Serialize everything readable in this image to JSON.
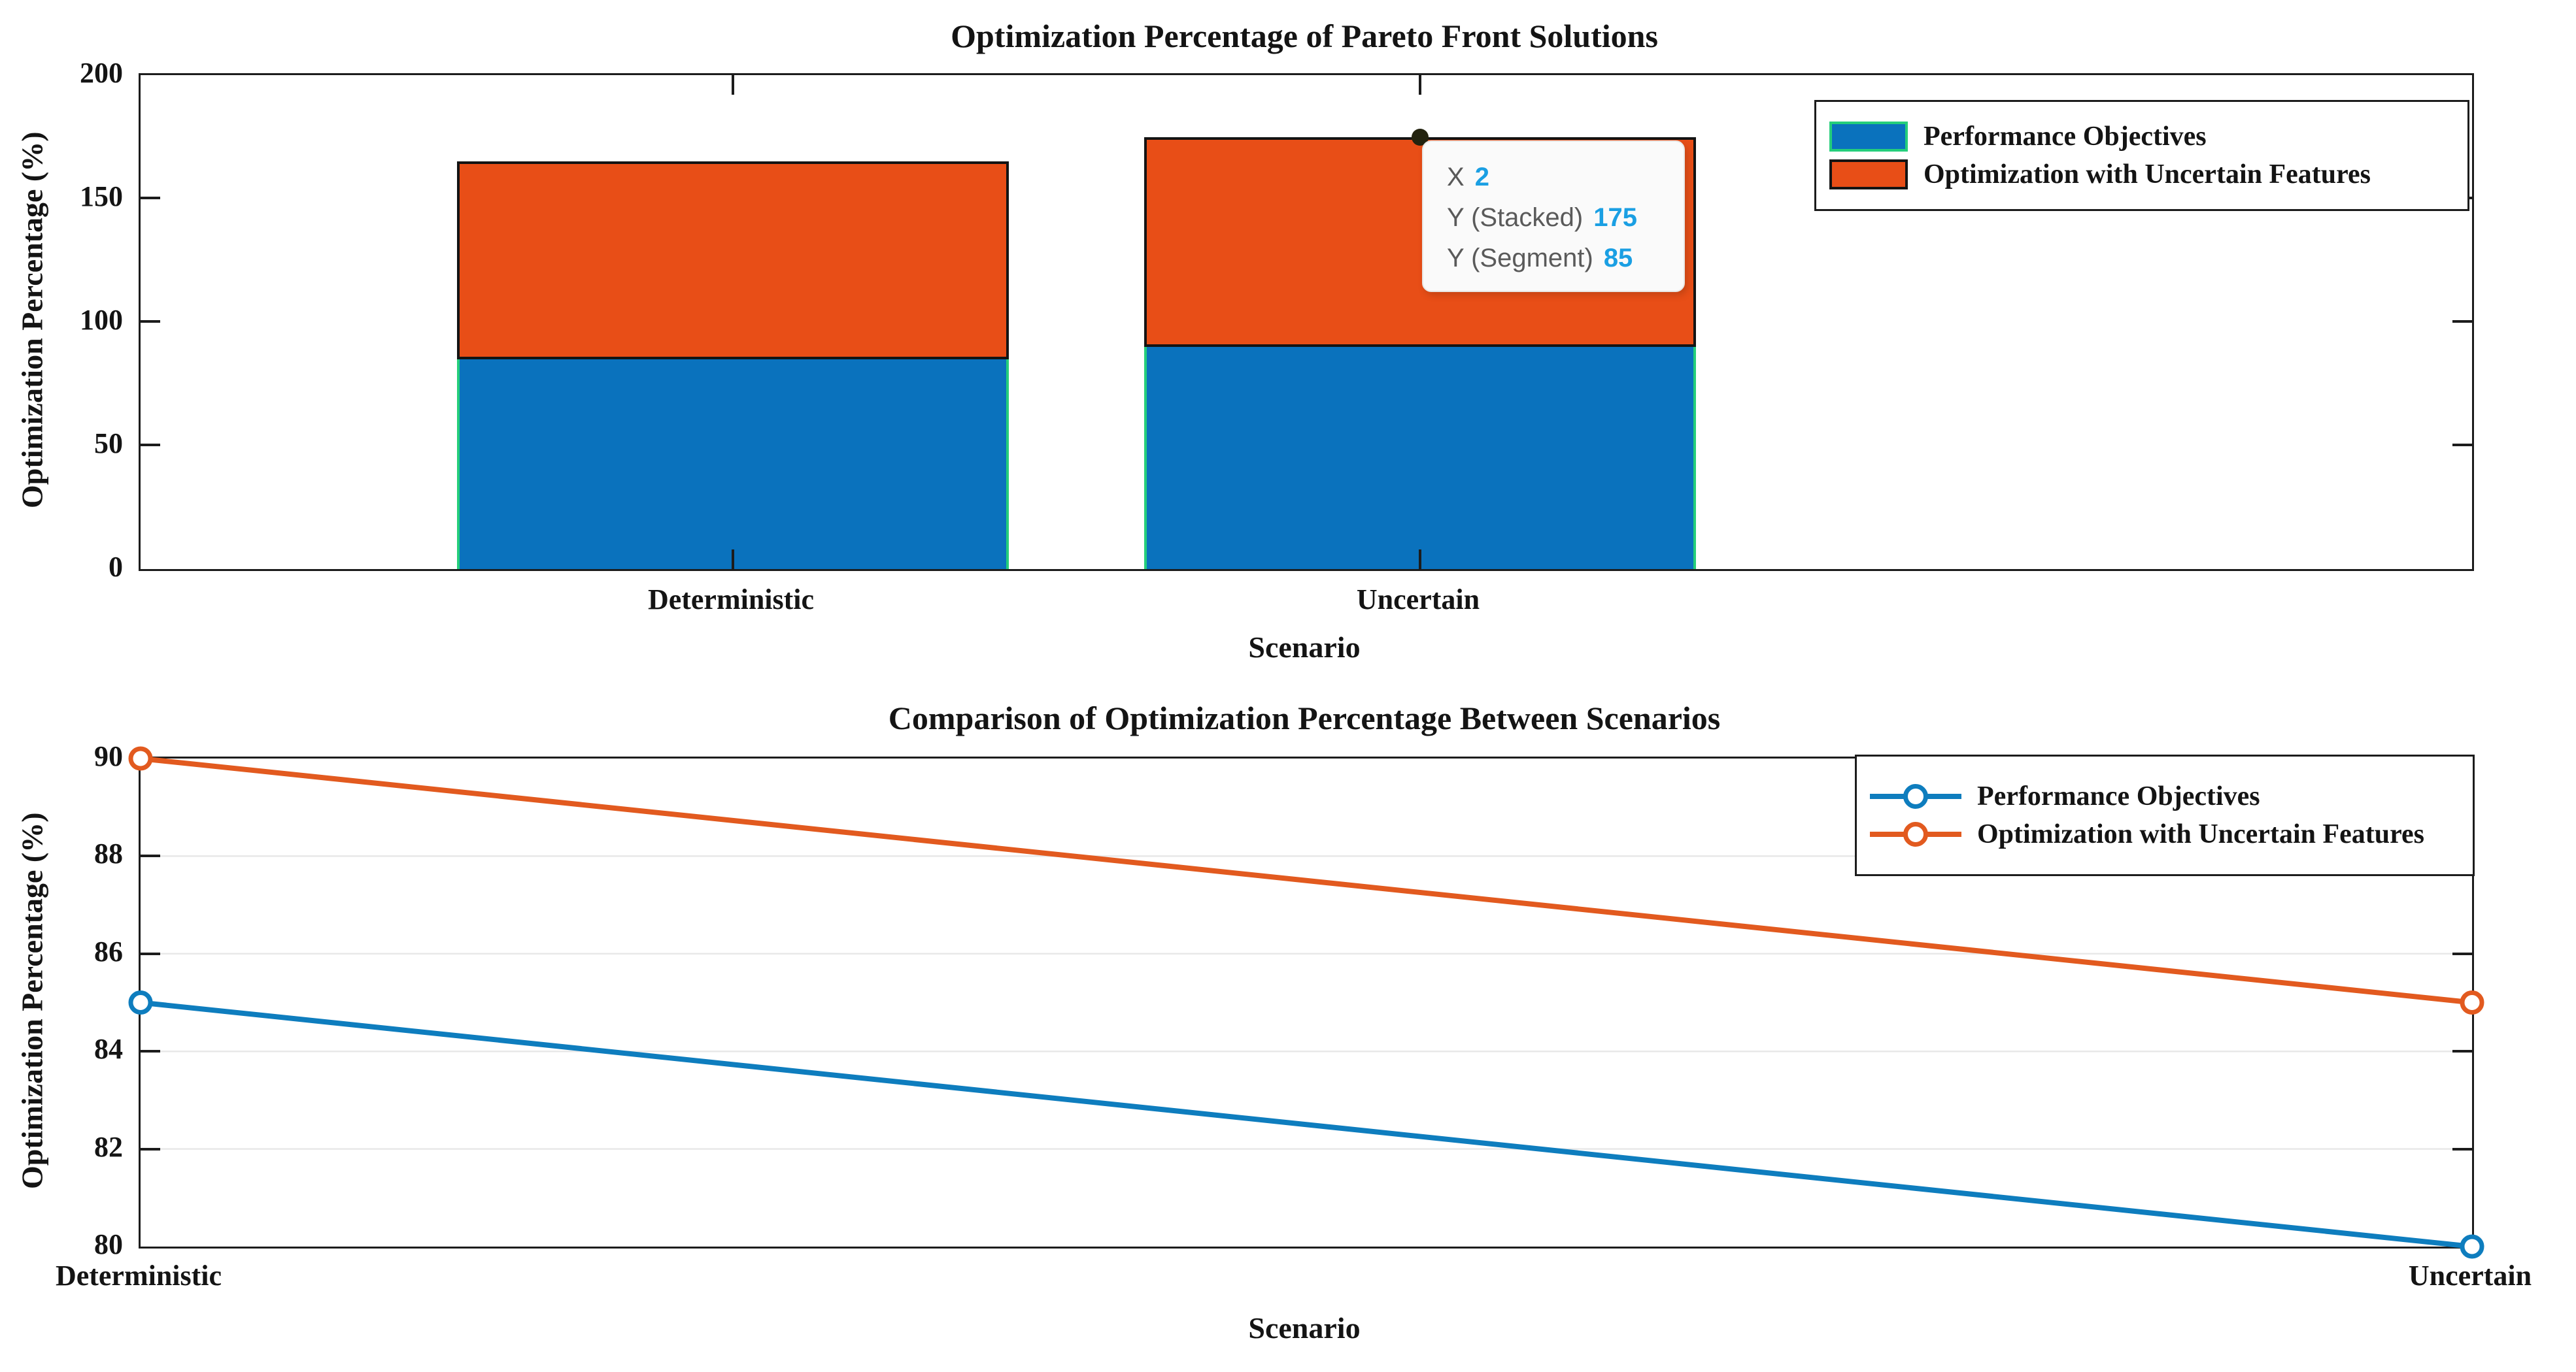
{
  "figure": {
    "background": "#FFFFFF",
    "text_color": "#141414",
    "axis_color": "#1C1C1C",
    "grid_color": "#E8E8E8"
  },
  "chart_data": [
    {
      "type": "bar",
      "stacked": true,
      "title": "Optimization Percentage of Pareto Front Solutions",
      "xlabel": "Scenario",
      "ylabel": "Optimization Percentage (%)",
      "categories": [
        "Deterministic",
        "Uncertain"
      ],
      "series": [
        {
          "name": "Performance Objectives",
          "values": [
            85,
            90
          ],
          "color": "#0A72BD",
          "edge_color": "#25CE7B"
        },
        {
          "name": "Optimization with Uncertain Features",
          "values": [
            80,
            85
          ],
          "color": "#E84E17",
          "edge_color": "#141414"
        }
      ],
      "stacked_totals": [
        165,
        175
      ],
      "ylim": [
        0,
        200
      ],
      "yticks": [
        0,
        50,
        100,
        150,
        200
      ],
      "grid": false,
      "legend_position": "top-right",
      "datatip": {
        "rows": [
          {
            "label": "X",
            "value": "2"
          },
          {
            "label": "Y (Stacked)",
            "value": "175"
          },
          {
            "label": "Y (Segment)",
            "value": "85"
          }
        ],
        "label_color": "#5A5A5A",
        "value_color": "#1A9FE3",
        "anchor": "top of Uncertain bar"
      }
    },
    {
      "type": "line",
      "title": "Comparison of Optimization Percentage Between Scenarios",
      "xlabel": "Scenario",
      "ylabel": "Optimization Percentage (%)",
      "categories": [
        "Deterministic",
        "Uncertain"
      ],
      "series": [
        {
          "name": "Performance Objectives",
          "values": [
            85,
            80
          ],
          "color": "#0E7DBE"
        },
        {
          "name": "Optimization with Uncertain Features",
          "values": [
            90,
            85
          ],
          "color": "#E25A1F"
        }
      ],
      "ylim": [
        80,
        90
      ],
      "yticks": [
        80,
        82,
        84,
        86,
        88,
        90
      ],
      "grid": true,
      "marker": "o",
      "legend_position": "top-right"
    }
  ]
}
